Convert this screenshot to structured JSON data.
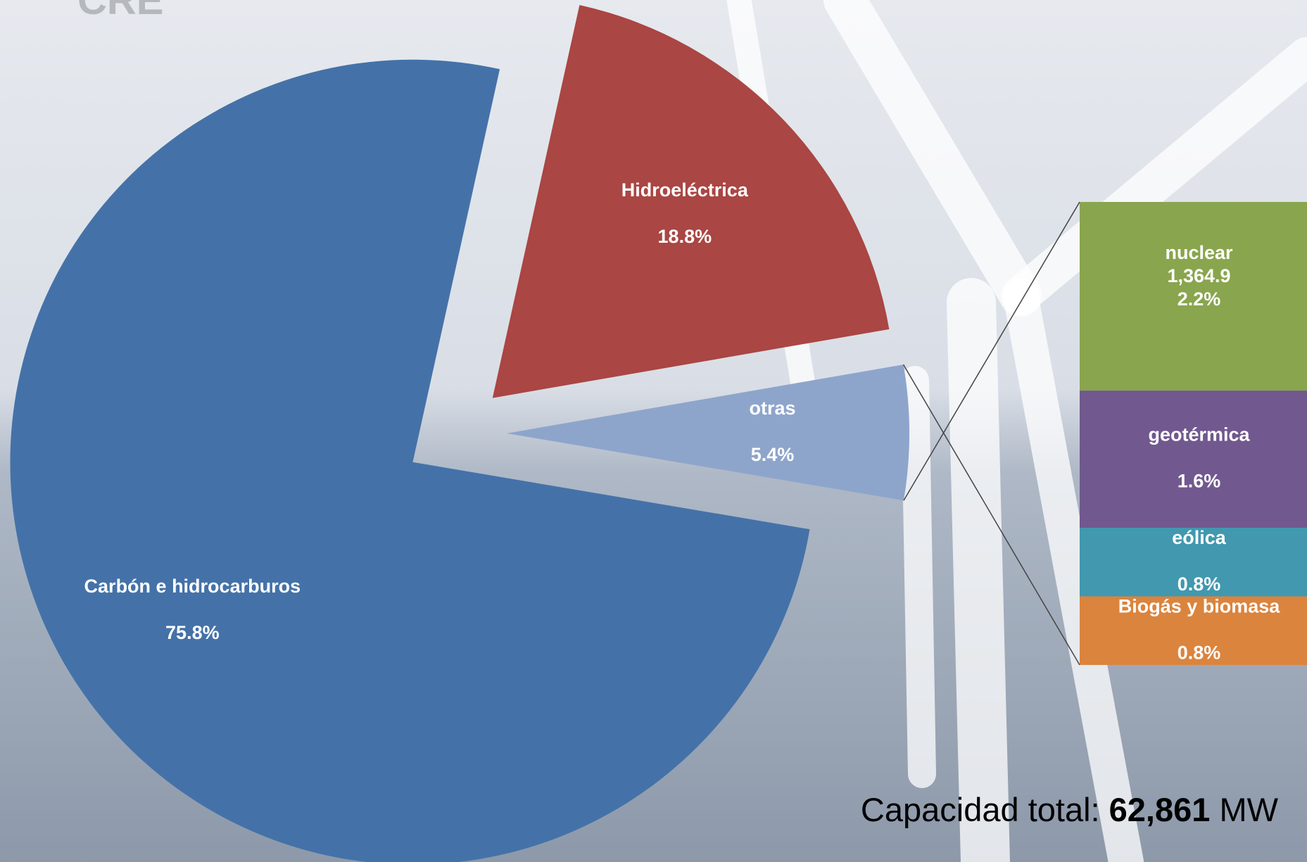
{
  "logo": "CRE",
  "chart_data": {
    "type": "pie-of-bar",
    "categories": [
      "Carbón e hidrocarburos",
      "Hidroeléctrica",
      "otras"
    ],
    "values": [
      75.8,
      18.8,
      5.4
    ],
    "value_labels": [
      "75.8%",
      "18.8%",
      "5.4%"
    ],
    "colors": [
      "#4472a8",
      "#aa4643",
      "#8ea5cb"
    ],
    "breakdown": {
      "categories": [
        "nuclear",
        "geotérmica",
        "eólica",
        "Biogás y biomasa"
      ],
      "values": [
        2.2,
        1.6,
        0.8,
        0.8
      ],
      "value_labels": [
        "2.2%",
        "1.6%",
        "0.8%",
        "0.8%"
      ],
      "capacity_labels": [
        "1,364.9",
        null,
        null,
        null
      ],
      "colors": [
        "#89a54e",
        "#71588f",
        "#4198af",
        "#db843d"
      ]
    },
    "total_prefix": "Capacidad total:",
    "total_value": "62,861",
    "total_unit": "MW"
  }
}
